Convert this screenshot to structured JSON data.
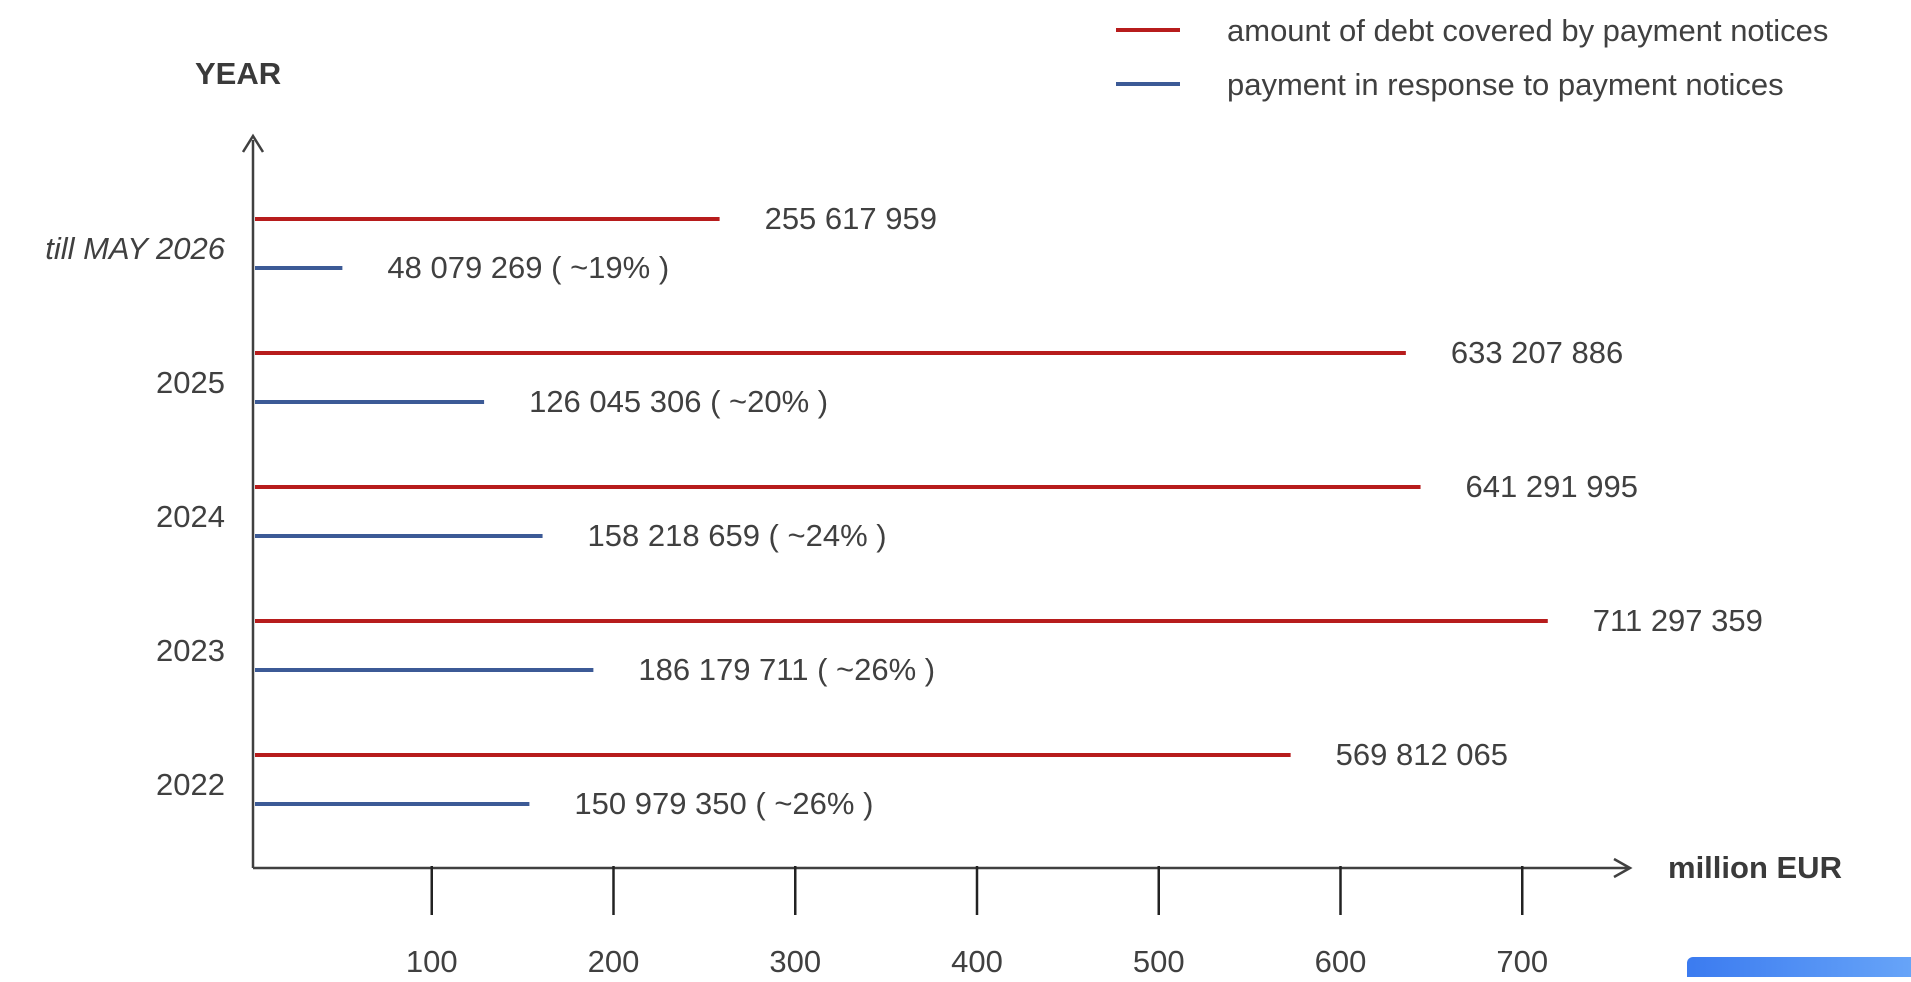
{
  "chart_data": {
    "type": "bar",
    "orientation": "horizontal",
    "ylabel": "YEAR",
    "xlabel": "million EUR",
    "xlim": [
      0,
      750
    ],
    "x_ticks": [
      100,
      200,
      300,
      400,
      500,
      600,
      700
    ],
    "categories": [
      "till MAY 2026",
      "2025",
      "2024",
      "2023",
      "2022"
    ],
    "series": [
      {
        "name": "amount of debt covered by payment notices",
        "color": "#b71c1c",
        "values": [
          255.617959,
          633.207886,
          641.291995,
          711.297359,
          569.812065
        ],
        "labels": [
          "255 617 959",
          "633 207 886",
          "641 291 995",
          "711 297 359",
          "569 812 065"
        ]
      },
      {
        "name": "payment in response to payment notices",
        "color": "#3c5a96",
        "values": [
          48.079269,
          126.045306,
          158.218659,
          186.179711,
          150.97935
        ],
        "labels": [
          "48 079 269 ( ~19% )",
          "126 045 306 ( ~20% )",
          "158 218 659 ( ~24% )",
          "186 179 711 ( ~26% )",
          "150 979 350 ( ~26% )"
        ]
      }
    ],
    "legend": "top-right",
    "grid": false
  },
  "colors": {
    "axis": "#404040",
    "accent_corner": "#3b7bf0"
  }
}
